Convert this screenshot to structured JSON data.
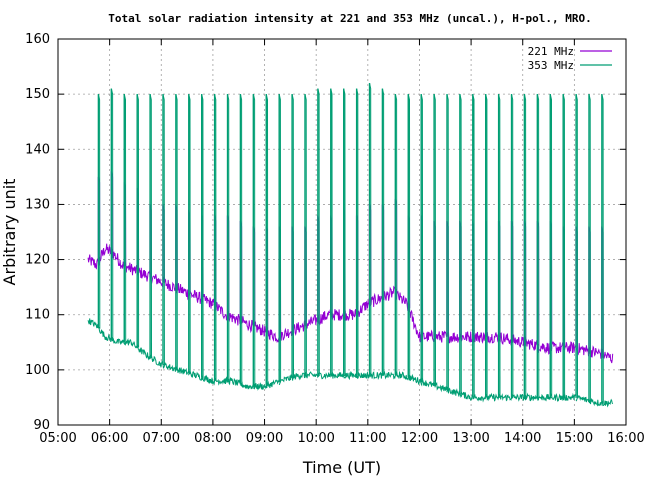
{
  "chart_data": {
    "type": "line",
    "title": "Total solar radiation intensity at 221 and 353 MHz (uncal.), H-pol., MRO.",
    "xlabel": "Time (UT)",
    "ylabel": "Arbitrary unit",
    "xlim": [
      "05:00",
      "16:00"
    ],
    "ylim": [
      90,
      160
    ],
    "x_ticks": [
      "05:00",
      "06:00",
      "07:00",
      "08:00",
      "09:00",
      "10:00",
      "11:00",
      "12:00",
      "13:00",
      "14:00",
      "15:00",
      "16:00"
    ],
    "y_ticks": [
      90,
      100,
      110,
      120,
      130,
      140,
      150,
      160
    ],
    "grid": true,
    "legend_position": "top-right",
    "colors": {
      "221 MHz": "#9400d3",
      "353 MHz": "#009e73"
    },
    "series": [
      {
        "name": "221 MHz",
        "baseline": [
          [
            "05:35",
            120
          ],
          [
            "05:45",
            119
          ],
          [
            "05:55",
            122
          ],
          [
            "06:05",
            121
          ],
          [
            "06:15",
            119
          ],
          [
            "06:30",
            118
          ],
          [
            "06:45",
            117
          ],
          [
            "07:00",
            116
          ],
          [
            "07:15",
            115
          ],
          [
            "07:30",
            114
          ],
          [
            "07:45",
            113
          ],
          [
            "08:00",
            112
          ],
          [
            "08:15",
            110
          ],
          [
            "08:30",
            109
          ],
          [
            "08:45",
            108
          ],
          [
            "09:00",
            107
          ],
          [
            "09:15",
            106
          ],
          [
            "09:30",
            107
          ],
          [
            "09:45",
            108
          ],
          [
            "10:00",
            109
          ],
          [
            "10:15",
            110
          ],
          [
            "10:30",
            110
          ],
          [
            "10:45",
            110
          ],
          [
            "11:00",
            112
          ],
          [
            "11:15",
            113
          ],
          [
            "11:30",
            114
          ],
          [
            "11:45",
            112
          ],
          [
            "11:55",
            108
          ],
          [
            "12:00",
            106
          ],
          [
            "12:30",
            106
          ],
          [
            "13:00",
            106
          ],
          [
            "13:30",
            106
          ],
          [
            "14:00",
            105
          ],
          [
            "14:30",
            104
          ],
          [
            "15:00",
            104
          ],
          [
            "15:30",
            103
          ],
          [
            "15:45",
            102
          ]
        ],
        "spike_peaks": [
          [
            "05:47",
            135
          ],
          [
            "06:02",
            136
          ],
          [
            "06:17",
            134
          ],
          [
            "06:32",
            133
          ],
          [
            "06:47",
            130
          ],
          [
            "07:02",
            130
          ],
          [
            "07:17",
            130
          ],
          [
            "07:32",
            129
          ],
          [
            "07:47",
            128
          ],
          [
            "08:02",
            128
          ],
          [
            "08:17",
            128
          ],
          [
            "08:32",
            127
          ],
          [
            "08:47",
            126
          ],
          [
            "09:02",
            126
          ],
          [
            "09:17",
            126
          ],
          [
            "09:32",
            126
          ],
          [
            "09:47",
            126
          ],
          [
            "10:02",
            128
          ],
          [
            "10:17",
            128
          ],
          [
            "10:32",
            129
          ],
          [
            "10:47",
            128
          ],
          [
            "11:02",
            130
          ],
          [
            "11:17",
            130
          ],
          [
            "11:32",
            131
          ],
          [
            "11:47",
            128
          ],
          [
            "12:02",
            128
          ],
          [
            "12:17",
            127
          ],
          [
            "12:32",
            127
          ],
          [
            "12:47",
            127
          ],
          [
            "13:02",
            127
          ],
          [
            "13:17",
            127
          ],
          [
            "13:32",
            127
          ],
          [
            "13:47",
            127
          ],
          [
            "14:02",
            127
          ],
          [
            "14:17",
            127
          ],
          [
            "14:32",
            127
          ],
          [
            "14:47",
            126
          ],
          [
            "15:02",
            126
          ],
          [
            "15:17",
            126
          ],
          [
            "15:32",
            126
          ]
        ]
      },
      {
        "name": "353 MHz",
        "baseline": [
          [
            "05:35",
            109
          ],
          [
            "05:45",
            108
          ],
          [
            "05:55",
            106
          ],
          [
            "06:10",
            105
          ],
          [
            "06:25",
            105
          ],
          [
            "06:40",
            103
          ],
          [
            "07:00",
            101
          ],
          [
            "07:20",
            100
          ],
          [
            "07:40",
            99
          ],
          [
            "08:00",
            98
          ],
          [
            "08:20",
            98
          ],
          [
            "08:40",
            97
          ],
          [
            "09:00",
            97
          ],
          [
            "09:20",
            98
          ],
          [
            "09:40",
            99
          ],
          [
            "10:00",
            99
          ],
          [
            "10:20",
            99
          ],
          [
            "10:40",
            99
          ],
          [
            "11:00",
            99
          ],
          [
            "11:20",
            99
          ],
          [
            "11:40",
            99
          ],
          [
            "12:00",
            98
          ],
          [
            "12:20",
            97
          ],
          [
            "12:40",
            96
          ],
          [
            "13:00",
            95
          ],
          [
            "13:30",
            95
          ],
          [
            "14:00",
            95
          ],
          [
            "14:30",
            95
          ],
          [
            "15:00",
            95
          ],
          [
            "15:30",
            94
          ],
          [
            "15:45",
            94
          ]
        ],
        "spike_peaks": [
          [
            "05:47",
            150
          ],
          [
            "06:02",
            151
          ],
          [
            "06:17",
            150
          ],
          [
            "06:32",
            150
          ],
          [
            "06:47",
            150
          ],
          [
            "07:02",
            150
          ],
          [
            "07:17",
            150
          ],
          [
            "07:32",
            150
          ],
          [
            "07:47",
            150
          ],
          [
            "08:02",
            150
          ],
          [
            "08:17",
            150
          ],
          [
            "08:32",
            150
          ],
          [
            "08:47",
            150
          ],
          [
            "09:02",
            150
          ],
          [
            "09:17",
            150
          ],
          [
            "09:32",
            150
          ],
          [
            "09:47",
            150
          ],
          [
            "10:02",
            151
          ],
          [
            "10:17",
            151
          ],
          [
            "10:32",
            151
          ],
          [
            "10:47",
            151
          ],
          [
            "11:02",
            152
          ],
          [
            "11:17",
            151
          ],
          [
            "11:32",
            150
          ],
          [
            "11:47",
            150
          ],
          [
            "12:02",
            150
          ],
          [
            "12:17",
            150
          ],
          [
            "12:32",
            150
          ],
          [
            "12:47",
            150
          ],
          [
            "13:02",
            150
          ],
          [
            "13:17",
            150
          ],
          [
            "13:32",
            150
          ],
          [
            "13:47",
            150
          ],
          [
            "14:02",
            150
          ],
          [
            "14:17",
            150
          ],
          [
            "14:32",
            150
          ],
          [
            "14:47",
            150
          ],
          [
            "15:02",
            150
          ],
          [
            "15:17",
            150
          ],
          [
            "15:32",
            150
          ]
        ]
      }
    ]
  }
}
